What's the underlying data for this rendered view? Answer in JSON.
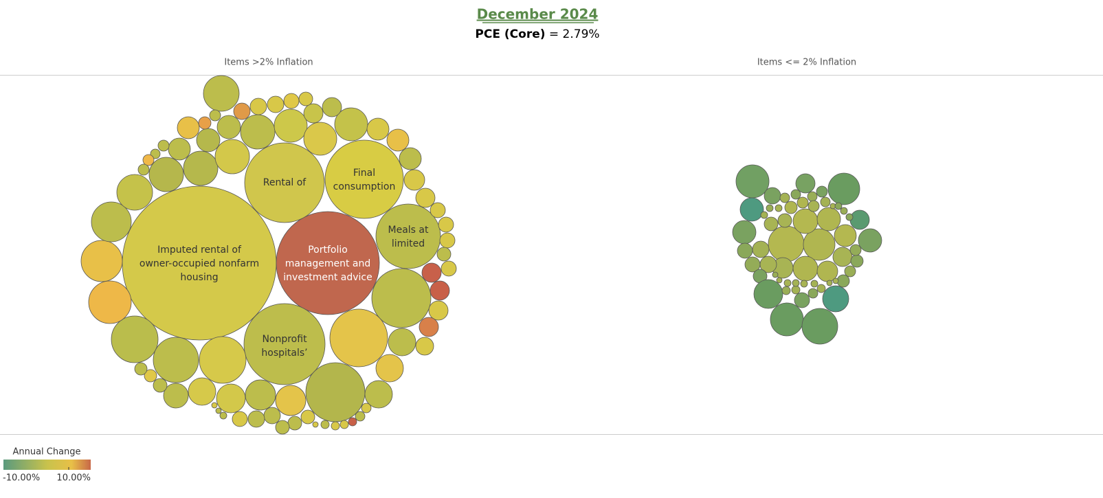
{
  "header": {
    "title": "December 2024",
    "subtitle_label": "PCE (Core)",
    "subtitle_value": "= 2.79%"
  },
  "panels": [
    {
      "title": "Items >2% Inflation"
    },
    {
      "title": "Items <= 2% Inflation"
    }
  ],
  "bubble_labels": [
    {
      "lines": [
        "Imputed rental of",
        "owner-occupied nonfarm",
        "housing"
      ]
    },
    {
      "lines": [
        "Portfolio",
        "management and",
        "investment advice"
      ]
    },
    {
      "lines": [
        "Rental of"
      ]
    },
    {
      "lines": [
        "Final",
        "consumption"
      ]
    },
    {
      "lines": [
        "Nonprofit",
        "hospitals’"
      ]
    },
    {
      "lines": [
        "Meals at",
        "limited"
      ]
    }
  ],
  "legend": {
    "title": "Annual Change",
    "min_label": "-10.00%",
    "max_label": "10.00%"
  }
}
